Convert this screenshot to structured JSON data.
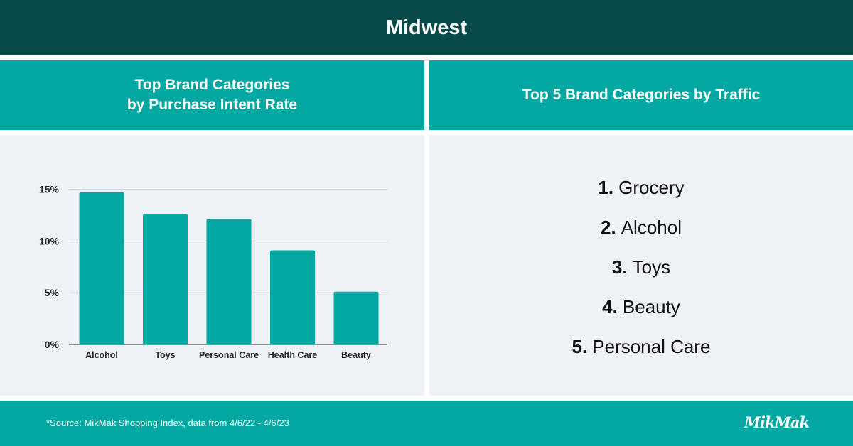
{
  "header": {
    "title": "Midwest"
  },
  "left_panel": {
    "title_lines": [
      "Top Brand Categories",
      "by Purchase Intent Rate"
    ]
  },
  "right_panel": {
    "title": "Top 5 Brand Categories by Traffic",
    "items": [
      {
        "rank": "1.",
        "label": "Grocery"
      },
      {
        "rank": "2.",
        "label": "Alcohol"
      },
      {
        "rank": "3.",
        "label": "Toys"
      },
      {
        "rank": "4.",
        "label": "Beauty"
      },
      {
        "rank": "5.",
        "label": "Personal Care"
      }
    ]
  },
  "footer": {
    "source": "*Source: MikMak Shopping Index, data from 4/6/22 - 4/6/23",
    "logo": "MikMak"
  },
  "colors": {
    "dark_teal": "#074a49",
    "teal": "#03a8a3",
    "panel_bg": "#eef2f6"
  },
  "chart_data": {
    "type": "bar",
    "categories": [
      "Alcohol",
      "Toys",
      "Personal Care",
      "Health Care",
      "Beauty"
    ],
    "values": [
      14.7,
      12.6,
      12.1,
      9.1,
      5.1
    ],
    "unit": "%",
    "yticks": [
      0,
      5,
      10,
      15
    ],
    "ytick_labels": [
      "0%",
      "5%",
      "10%",
      "15%"
    ],
    "ylim": [
      0,
      16
    ],
    "grid": true,
    "bar_color": "#03a8a3"
  }
}
